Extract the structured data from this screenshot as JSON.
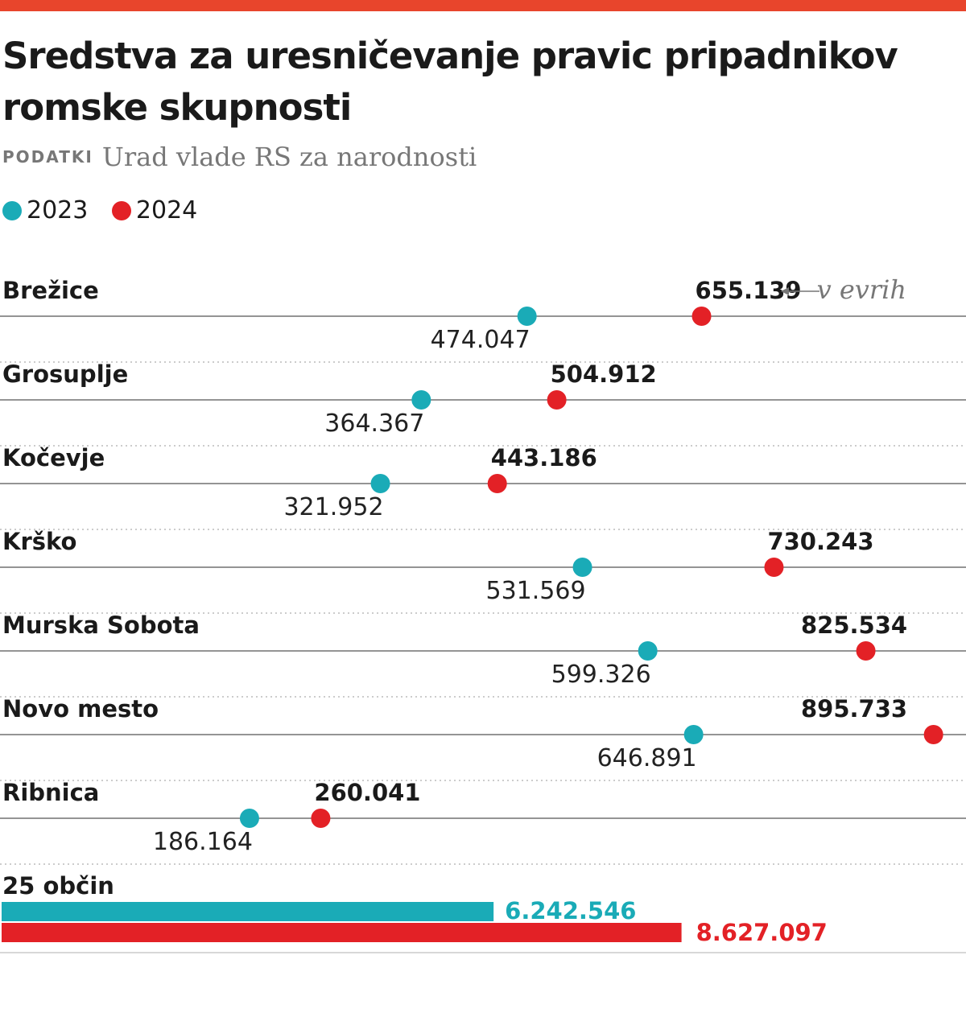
{
  "title": "Sredstva za uresničevanje pravic pripadnikov romske skupnosti",
  "source_label": "PODATKI",
  "source": "Urad vlade RS za narodnosti",
  "unit_note": "v evrih",
  "colors": {
    "y2023": "#1aabb7",
    "y2024": "#e32126",
    "top_bar": "#e8452c"
  },
  "chart_data": {
    "type": "dot",
    "series_names": [
      "2023",
      "2024"
    ],
    "categories": [
      "Brežice",
      "Grosuplje",
      "Kočevje",
      "Krško",
      "Murska Sobota",
      "Novo mesto",
      "Ribnica"
    ],
    "values_2023": [
      474047,
      364367,
      321952,
      531569,
      599326,
      646891,
      186164
    ],
    "labels_2023": [
      "474.047",
      "364.367",
      "321.952",
      "531.569",
      "599.326",
      "646.891",
      "186.164"
    ],
    "values_2024": [
      655139,
      504912,
      443186,
      730243,
      825534,
      895733,
      260041
    ],
    "labels_2024": [
      "655.139",
      "504.912",
      "443.186",
      "730.243",
      "825.534",
      "895.733",
      "260.041"
    ],
    "total": {
      "label": "25 občin",
      "value_2023": 6242546,
      "label_2023": "6.242.546",
      "value_2024": 8627097,
      "label_2024": "8.627.097"
    }
  }
}
